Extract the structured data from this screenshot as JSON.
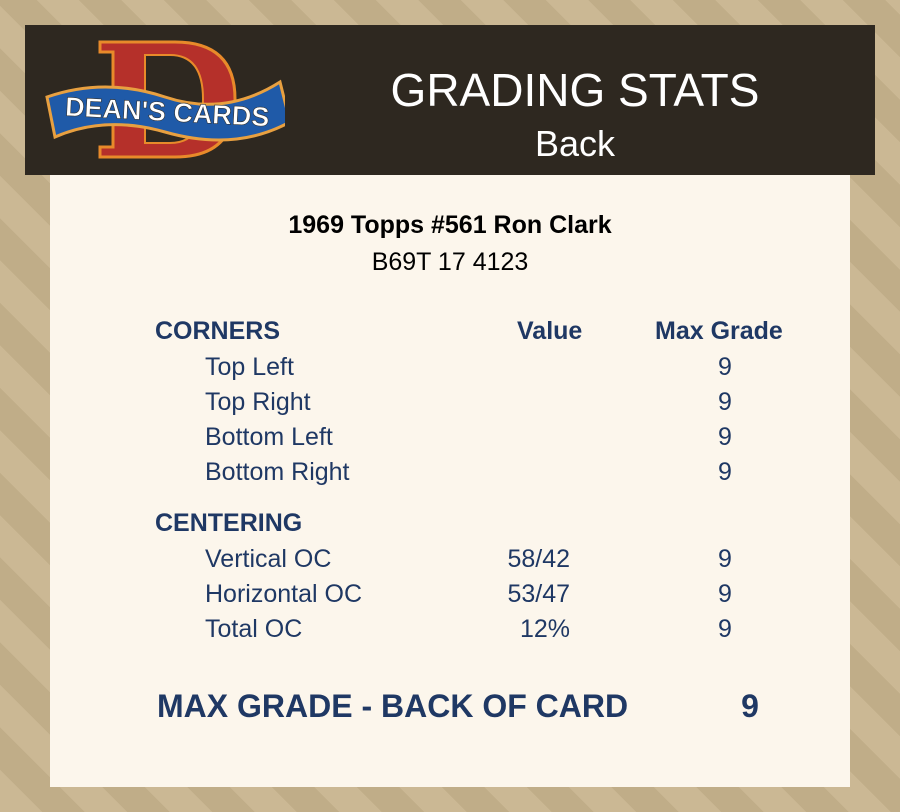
{
  "brand": {
    "logo_text": "DEAN'S CARDS",
    "logo_letter": "D"
  },
  "header": {
    "title": "GRADING STATS",
    "subtitle": "Back"
  },
  "card": {
    "name": "1969 Topps #561 Ron Clark",
    "code": "B69T 17 4123"
  },
  "columns": {
    "value": "Value",
    "max_grade": "Max Grade"
  },
  "corners": {
    "label": "CORNERS",
    "rows": [
      {
        "name": "Top Left",
        "value": "",
        "grade": "9"
      },
      {
        "name": "Top Right",
        "value": "",
        "grade": "9"
      },
      {
        "name": "Bottom Left",
        "value": "",
        "grade": "9"
      },
      {
        "name": "Bottom Right",
        "value": "",
        "grade": "9"
      }
    ]
  },
  "centering": {
    "label": "CENTERING",
    "rows": [
      {
        "name": "Vertical OC",
        "value": "58/42",
        "grade": "9"
      },
      {
        "name": "Horizontal OC",
        "value": "53/47",
        "grade": "9"
      },
      {
        "name": "Total OC",
        "value": "12%",
        "grade": "9"
      }
    ]
  },
  "summary": {
    "label": "MAX GRADE - BACK OF CARD",
    "grade": "9"
  },
  "colors": {
    "text": "#1f3864",
    "header_bg": "#2e2820",
    "panel": "#fcf6ec",
    "background": "#c8b48e"
  }
}
